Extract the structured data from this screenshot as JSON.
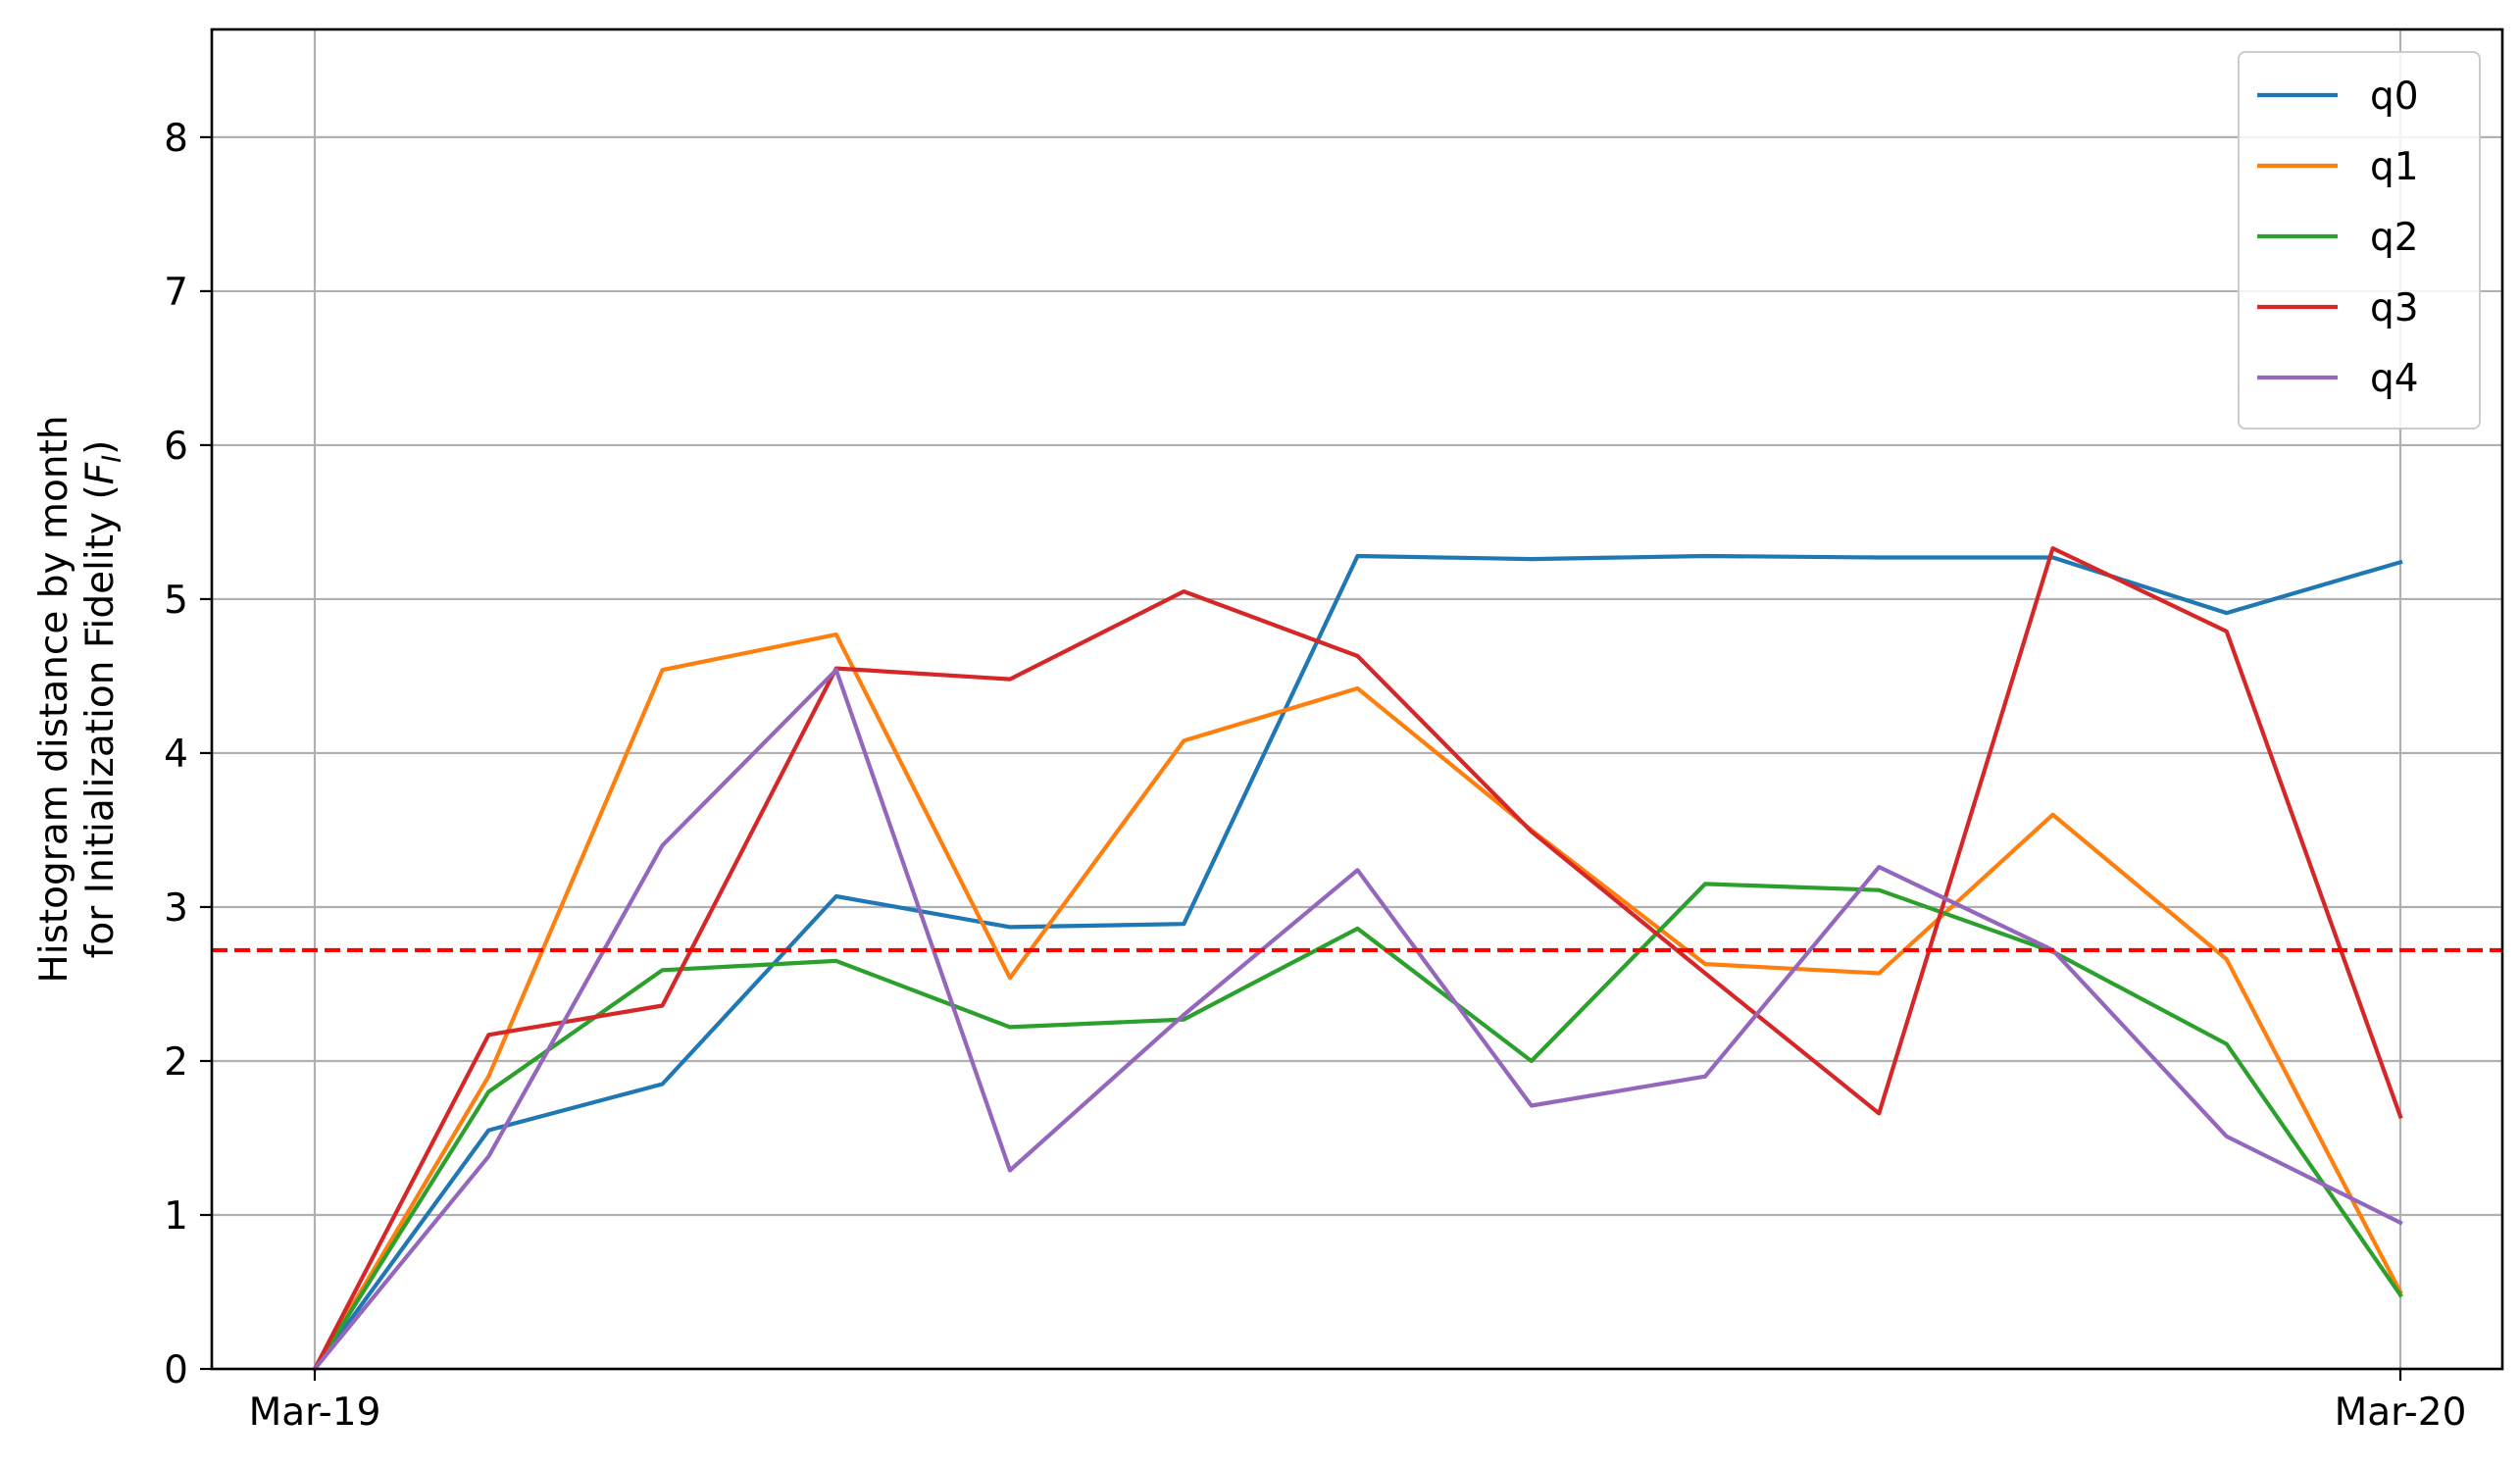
{
  "chart_data": {
    "type": "line",
    "x": [
      "Mar-19",
      "",
      "",
      "",
      "",
      "",
      "",
      "",
      "",
      "",
      "",
      "",
      "Mar-20"
    ],
    "xtick_labels": [
      "Mar-19",
      "Mar-20"
    ],
    "ylabel_line1": "Histogram distance by month",
    "ylabel_line2": "for Initialization Fidelity (",
    "ylabel_symbol": "F",
    "ylabel_subscript": "I",
    "ylabel_close": ")",
    "ylim": [
      0,
      8.7
    ],
    "yticks": [
      0,
      1,
      2,
      3,
      4,
      5,
      6,
      7,
      8
    ],
    "grid": true,
    "legend_position": "top-right",
    "threshold": {
      "value": 2.72,
      "color": "#ff0000",
      "style": "dashed"
    },
    "series": [
      {
        "name": "q0",
        "color": "#1f77b4",
        "values": [
          0,
          1.55,
          1.85,
          3.07,
          2.87,
          2.89,
          5.28,
          5.26,
          5.28,
          5.27,
          5.27,
          4.91,
          5.24
        ]
      },
      {
        "name": "q1",
        "color": "#ff7f0e",
        "values": [
          0,
          1.9,
          4.54,
          4.77,
          2.54,
          4.08,
          4.42,
          3.5,
          2.63,
          2.57,
          3.6,
          2.66,
          0.5
        ]
      },
      {
        "name": "q2",
        "color": "#2ca02c",
        "values": [
          0,
          1.8,
          2.59,
          2.65,
          2.22,
          2.27,
          2.86,
          2.0,
          3.15,
          3.11,
          2.71,
          2.11,
          0.48
        ]
      },
      {
        "name": "q3",
        "color": "#d62728",
        "values": [
          0,
          2.17,
          2.36,
          4.55,
          4.48,
          5.05,
          4.63,
          3.49,
          2.57,
          1.66,
          5.33,
          4.79,
          1.64
        ]
      },
      {
        "name": "q4",
        "color": "#9467bd",
        "values": [
          0,
          1.38,
          3.4,
          4.54,
          1.29,
          2.3,
          3.24,
          1.71,
          1.9,
          3.26,
          2.72,
          1.51,
          0.95
        ]
      }
    ]
  }
}
